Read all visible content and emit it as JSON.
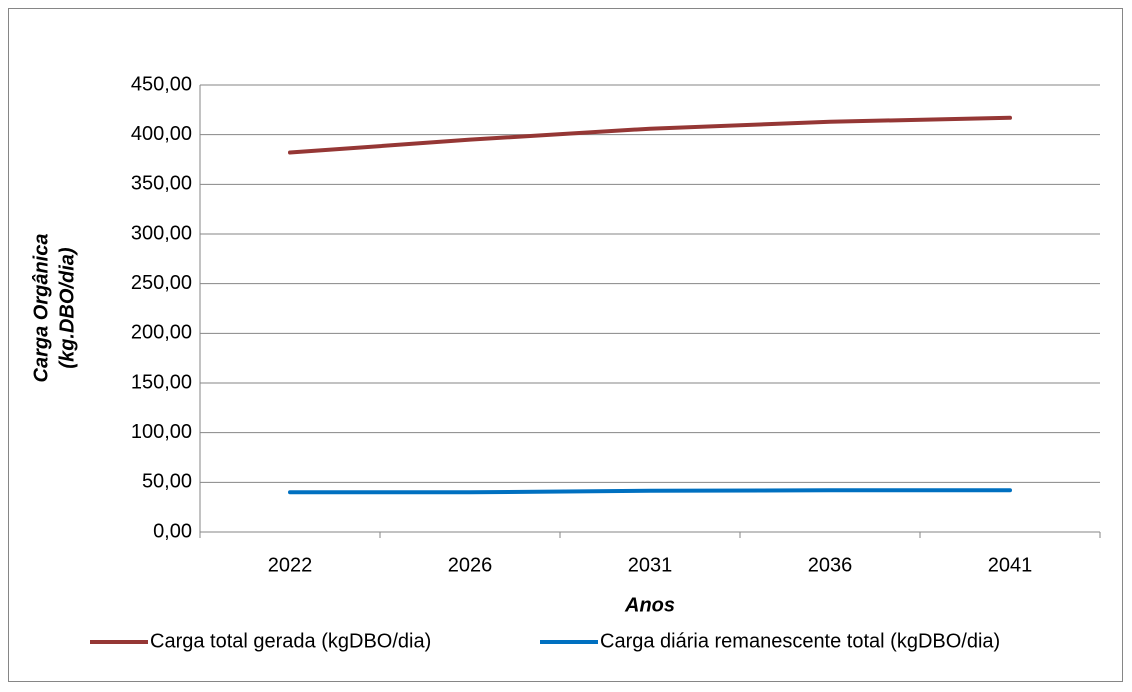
{
  "chart_data": {
    "type": "line",
    "categories": [
      "2022",
      "2026",
      "2031",
      "2036",
      "2041"
    ],
    "series": [
      {
        "name": "Carga total gerada (kgDBO/dia)",
        "color": "#953735",
        "values": [
          382,
          395,
          406,
          413,
          417
        ]
      },
      {
        "name": "Carga diária remanescente total (kgDBO/dia)",
        "color": "#0070c0",
        "values": [
          40,
          40,
          41.5,
          42,
          42
        ]
      }
    ],
    "ylim": [
      0,
      450
    ],
    "yticks": [
      {
        "value": 0,
        "label": "0,00"
      },
      {
        "value": 50,
        "label": "50,00"
      },
      {
        "value": 100,
        "label": "100,00"
      },
      {
        "value": 150,
        "label": "150,00"
      },
      {
        "value": 200,
        "label": "200,00"
      },
      {
        "value": 250,
        "label": "250,00"
      },
      {
        "value": 300,
        "label": "300,00"
      },
      {
        "value": 350,
        "label": "350,00"
      },
      {
        "value": 400,
        "label": "400,00"
      },
      {
        "value": 450,
        "label": "450,00"
      }
    ],
    "x_label": "Anos",
    "y_label": [
      "Carga Orgânica",
      "(kg.DBO/dia)"
    ],
    "grid": true,
    "legend": "bottom"
  }
}
